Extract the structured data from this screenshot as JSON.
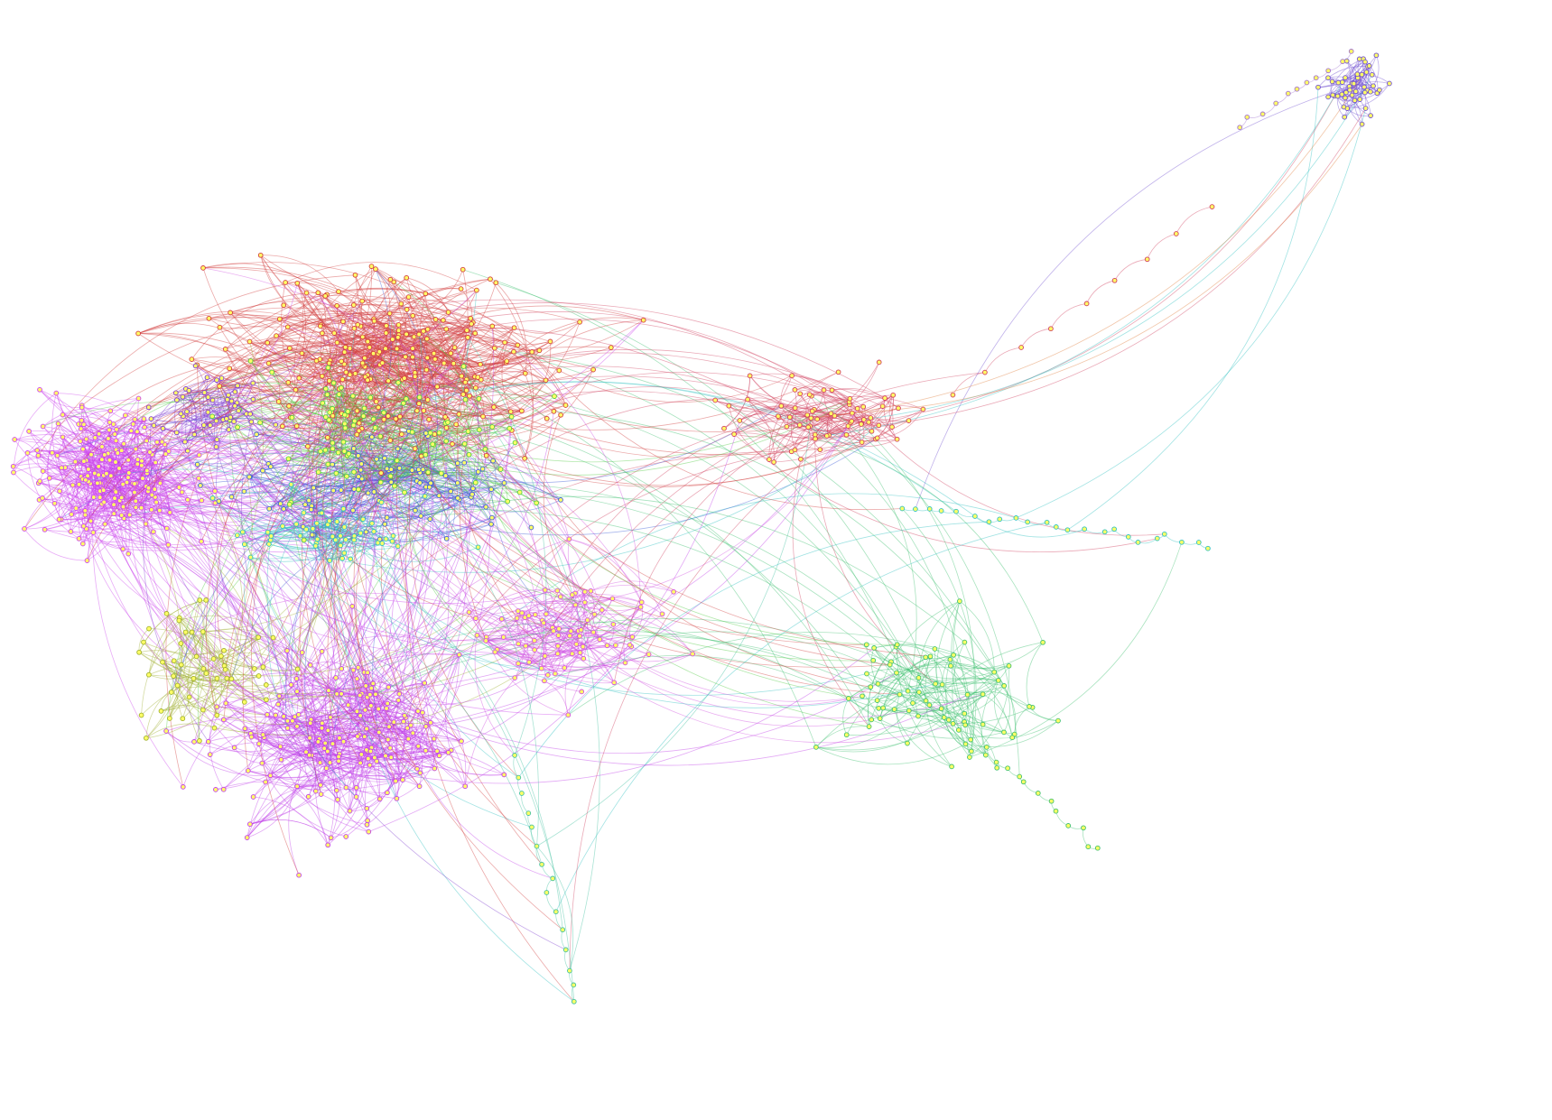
{
  "graph": {
    "type": "force-directed-network",
    "legend": "none",
    "labels": "none",
    "background": "#ffffff",
    "node_color": "#ffff66",
    "communities": [
      {
        "name": "red-core",
        "color": "#d24040",
        "node_count": 220
      },
      {
        "name": "magenta-left",
        "color": "#cc44ee",
        "node_count": 180
      },
      {
        "name": "magenta-lower",
        "color": "#c040e8",
        "node_count": 170
      },
      {
        "name": "blue",
        "color": "#4060d8",
        "node_count": 90
      },
      {
        "name": "green",
        "color": "#55cc44",
        "node_count": 90
      },
      {
        "name": "cyan",
        "color": "#30c0c0",
        "node_count": 50
      },
      {
        "name": "olive",
        "color": "#a0b030",
        "node_count": 50
      },
      {
        "name": "violet",
        "color": "#8040d0",
        "node_count": 50
      },
      {
        "name": "magenta-mid",
        "color": "#d050e0",
        "node_count": 80
      },
      {
        "name": "right-cluster",
        "color": "#d04060",
        "node_count": 70
      },
      {
        "name": "far-right-cluster",
        "color": "#7050d0",
        "node_count": 50
      },
      {
        "name": "tendrils",
        "color": "#40c070",
        "node_count": 60
      }
    ]
  }
}
